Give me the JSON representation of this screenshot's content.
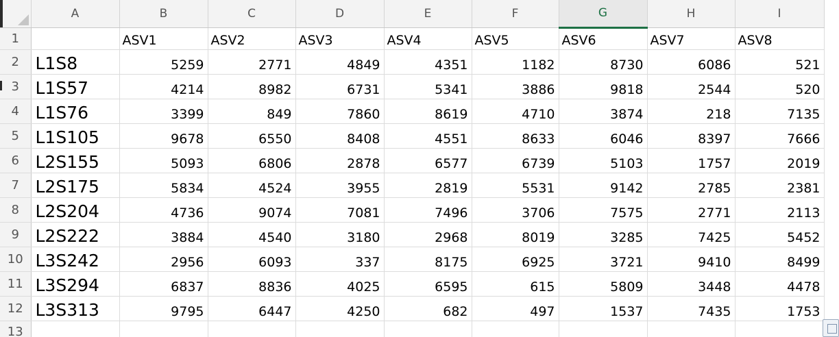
{
  "sheet": {
    "corner_icon": "select-all-triangle",
    "selected_column": "G",
    "column_letters": [
      "A",
      "B",
      "C",
      "D",
      "E",
      "F",
      "G",
      "H",
      "I"
    ],
    "row_numbers": [
      "1",
      "2",
      "3",
      "4",
      "5",
      "6",
      "7",
      "8",
      "9",
      "10",
      "11",
      "12",
      "13"
    ],
    "header_row": [
      "",
      "ASV1",
      "ASV2",
      "ASV3",
      "ASV4",
      "ASV5",
      "ASV6",
      "ASV7",
      "ASV8"
    ],
    "rows": [
      {
        "label": "L1S8",
        "values": [
          "5259",
          "2771",
          "4849",
          "4351",
          "1182",
          "8730",
          "6086",
          "521"
        ]
      },
      {
        "label": "L1S57",
        "values": [
          "4214",
          "8982",
          "6731",
          "5341",
          "3886",
          "9818",
          "2544",
          "520"
        ]
      },
      {
        "label": "L1S76",
        "values": [
          "3399",
          "849",
          "7860",
          "8619",
          "4710",
          "3874",
          "218",
          "7135"
        ]
      },
      {
        "label": "L1S105",
        "values": [
          "9678",
          "6550",
          "8408",
          "4551",
          "8633",
          "6046",
          "8397",
          "7666"
        ]
      },
      {
        "label": "L2S155",
        "values": [
          "5093",
          "6806",
          "2878",
          "6577",
          "6739",
          "5103",
          "1757",
          "2019"
        ]
      },
      {
        "label": "L2S175",
        "values": [
          "5834",
          "4524",
          "3955",
          "2819",
          "5531",
          "9142",
          "2785",
          "2381"
        ]
      },
      {
        "label": "L2S204",
        "values": [
          "4736",
          "9074",
          "7081",
          "7496",
          "3706",
          "7575",
          "2771",
          "2113"
        ]
      },
      {
        "label": "L2S222",
        "values": [
          "3884",
          "4540",
          "3180",
          "2968",
          "8019",
          "3285",
          "7425",
          "5452"
        ]
      },
      {
        "label": "L3S242",
        "values": [
          "2956",
          "6093",
          "337",
          "8175",
          "6925",
          "3721",
          "9410",
          "8499"
        ]
      },
      {
        "label": "L3S294",
        "values": [
          "6837",
          "8836",
          "4025",
          "6595",
          "615",
          "5809",
          "3448",
          "4478"
        ]
      },
      {
        "label": "L3S313",
        "values": [
          "9795",
          "6447",
          "4250",
          "682",
          "497",
          "1537",
          "7435",
          "1753"
        ]
      }
    ],
    "accent_color": "#1e7145"
  }
}
